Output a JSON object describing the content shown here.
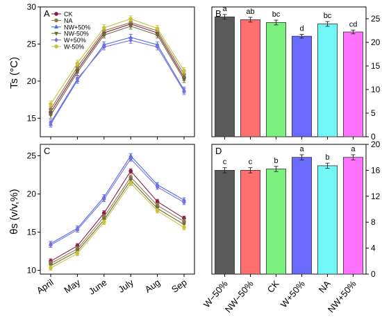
{
  "y_axis_labels": {
    "ts": "Ts (°C)",
    "theta": "θs (v/v,%)"
  },
  "months": [
    "April",
    "May",
    "June",
    "July",
    "Aug",
    "Sep"
  ],
  "treatments": [
    "W−50%",
    "NW−50%",
    "CK",
    "W+50%",
    "NA",
    "NW+50%"
  ],
  "chart_data": [
    {
      "panel": "A",
      "type": "line",
      "x": [
        "April",
        "May",
        "June",
        "July",
        "Aug",
        "Sep"
      ],
      "ylim": [
        12.5,
        30
      ],
      "yticks": [
        15,
        20,
        25,
        30
      ],
      "legend_position": "top-left",
      "series": [
        {
          "name": "CK",
          "color": "#8b1a4a",
          "marker": "circle",
          "values": [
            15.8,
            21.5,
            26.5,
            27.7,
            26.5,
            20.5
          ],
          "errors": [
            0.4,
            0.4,
            0.4,
            0.4,
            0.4,
            0.4
          ]
        },
        {
          "name": "NA",
          "color": "#8b7d4a",
          "marker": "circle",
          "values": [
            16.2,
            21.9,
            26.8,
            27.9,
            26.8,
            20.9
          ],
          "errors": [
            0.4,
            0.4,
            0.4,
            0.4,
            0.4,
            0.4
          ]
        },
        {
          "name": "NW+50%",
          "color": "#4a6fe3",
          "marker": "triangle-up",
          "values": [
            14.2,
            20.1,
            24.9,
            25.9,
            24.9,
            18.8
          ],
          "errors": [
            0.4,
            0.4,
            0.4,
            0.4,
            0.4,
            0.4
          ]
        },
        {
          "name": "NW-50%",
          "color": "#6b6b3a",
          "marker": "triangle-down",
          "values": [
            15.4,
            21.2,
            26.2,
            27.4,
            26.2,
            20.2
          ],
          "errors": [
            0.4,
            0.4,
            0.4,
            0.4,
            0.4,
            0.4
          ]
        },
        {
          "name": "W+50%",
          "color": "#7a6fe0",
          "marker": "diamond",
          "values": [
            14.4,
            20.3,
            24.6,
            25.5,
            24.6,
            18.6
          ],
          "errors": [
            0.4,
            0.4,
            0.4,
            0.4,
            0.4,
            0.4
          ]
        },
        {
          "name": "W-50%",
          "color": "#c9c23a",
          "marker": "circle",
          "values": [
            16.9,
            22.4,
            27.2,
            28.4,
            27.1,
            21.4
          ],
          "errors": [
            0.4,
            0.4,
            0.4,
            0.4,
            0.4,
            0.4
          ]
        }
      ]
    },
    {
      "panel": "B",
      "type": "bar",
      "categories": [
        "W−50%",
        "NW−50%",
        "CK",
        "W+50%",
        "NA",
        "NW+50%"
      ],
      "values": [
        25.4,
        24.8,
        24.2,
        21.3,
        23.9,
        22.2
      ],
      "errors": [
        0.5,
        0.5,
        0.5,
        0.4,
        0.5,
        0.4
      ],
      "letters": [
        "a",
        "ab",
        "bc",
        "d",
        "bc",
        "cd"
      ],
      "colors": [
        "#5a5a5a",
        "#ff6f6f",
        "#7cf07c",
        "#6a6aff",
        "#72f7f7",
        "#ff72ff"
      ],
      "ylim": [
        0,
        27.5
      ],
      "yticks": [
        0,
        5,
        10,
        15,
        20,
        25
      ],
      "y_axis_side": "right"
    },
    {
      "panel": "C",
      "type": "line",
      "x": [
        "April",
        "May",
        "June",
        "July",
        "Aug",
        "Sep"
      ],
      "ylim": [
        9.5,
        26.5
      ],
      "yticks": [
        10,
        15,
        20,
        25
      ],
      "series": [
        {
          "name": "CK",
          "color": "#8b1a4a",
          "marker": "circle",
          "values": [
            11.2,
            13.2,
            17.5,
            23.0,
            19.0,
            16.8
          ],
          "errors": [
            0.3,
            0.3,
            0.3,
            0.3,
            0.3,
            0.3
          ]
        },
        {
          "name": "NA",
          "color": "#8b7d4a",
          "marker": "circle",
          "values": [
            10.9,
            12.8,
            17.0,
            22.2,
            18.5,
            16.4
          ],
          "errors": [
            0.3,
            0.3,
            0.3,
            0.3,
            0.3,
            0.3
          ]
        },
        {
          "name": "NW+50%",
          "color": "#4a6fe3",
          "marker": "triangle-up",
          "values": [
            13.5,
            15.5,
            19.6,
            25.0,
            21.2,
            19.2
          ],
          "errors": [
            0.3,
            0.3,
            0.3,
            0.3,
            0.3,
            0.3
          ]
        },
        {
          "name": "NW-50%",
          "color": "#6b6b3a",
          "marker": "triangle-down",
          "values": [
            10.6,
            12.5,
            16.6,
            21.8,
            18.1,
            16.0
          ],
          "errors": [
            0.3,
            0.3,
            0.3,
            0.3,
            0.3,
            0.3
          ]
        },
        {
          "name": "W+50%",
          "color": "#7a6fe0",
          "marker": "diamond",
          "values": [
            13.3,
            15.3,
            19.3,
            24.6,
            20.9,
            18.9
          ],
          "errors": [
            0.3,
            0.3,
            0.3,
            0.3,
            0.3,
            0.3
          ]
        },
        {
          "name": "W-50%",
          "color": "#c9c23a",
          "marker": "circle",
          "values": [
            10.3,
            12.2,
            16.3,
            21.4,
            17.8,
            15.6
          ],
          "errors": [
            0.3,
            0.3,
            0.3,
            0.3,
            0.3,
            0.3
          ]
        }
      ]
    },
    {
      "panel": "D",
      "type": "bar",
      "categories": [
        "W−50%",
        "NW−50%",
        "CK",
        "W+50%",
        "NA",
        "NW+50%"
      ],
      "values": [
        16.0,
        16.0,
        16.2,
        18.0,
        16.7,
        18.0
      ],
      "errors": [
        0.4,
        0.4,
        0.4,
        0.4,
        0.4,
        0.4
      ],
      "letters": [
        "c",
        "c",
        "b",
        "a",
        "b",
        "a"
      ],
      "colors": [
        "#5a5a5a",
        "#ff6f6f",
        "#7cf07c",
        "#6a6aff",
        "#72f7f7",
        "#ff72ff"
      ],
      "ylim": [
        0,
        20
      ],
      "yticks": [
        0,
        4,
        8,
        12,
        16,
        20
      ],
      "y_axis_side": "right"
    }
  ]
}
